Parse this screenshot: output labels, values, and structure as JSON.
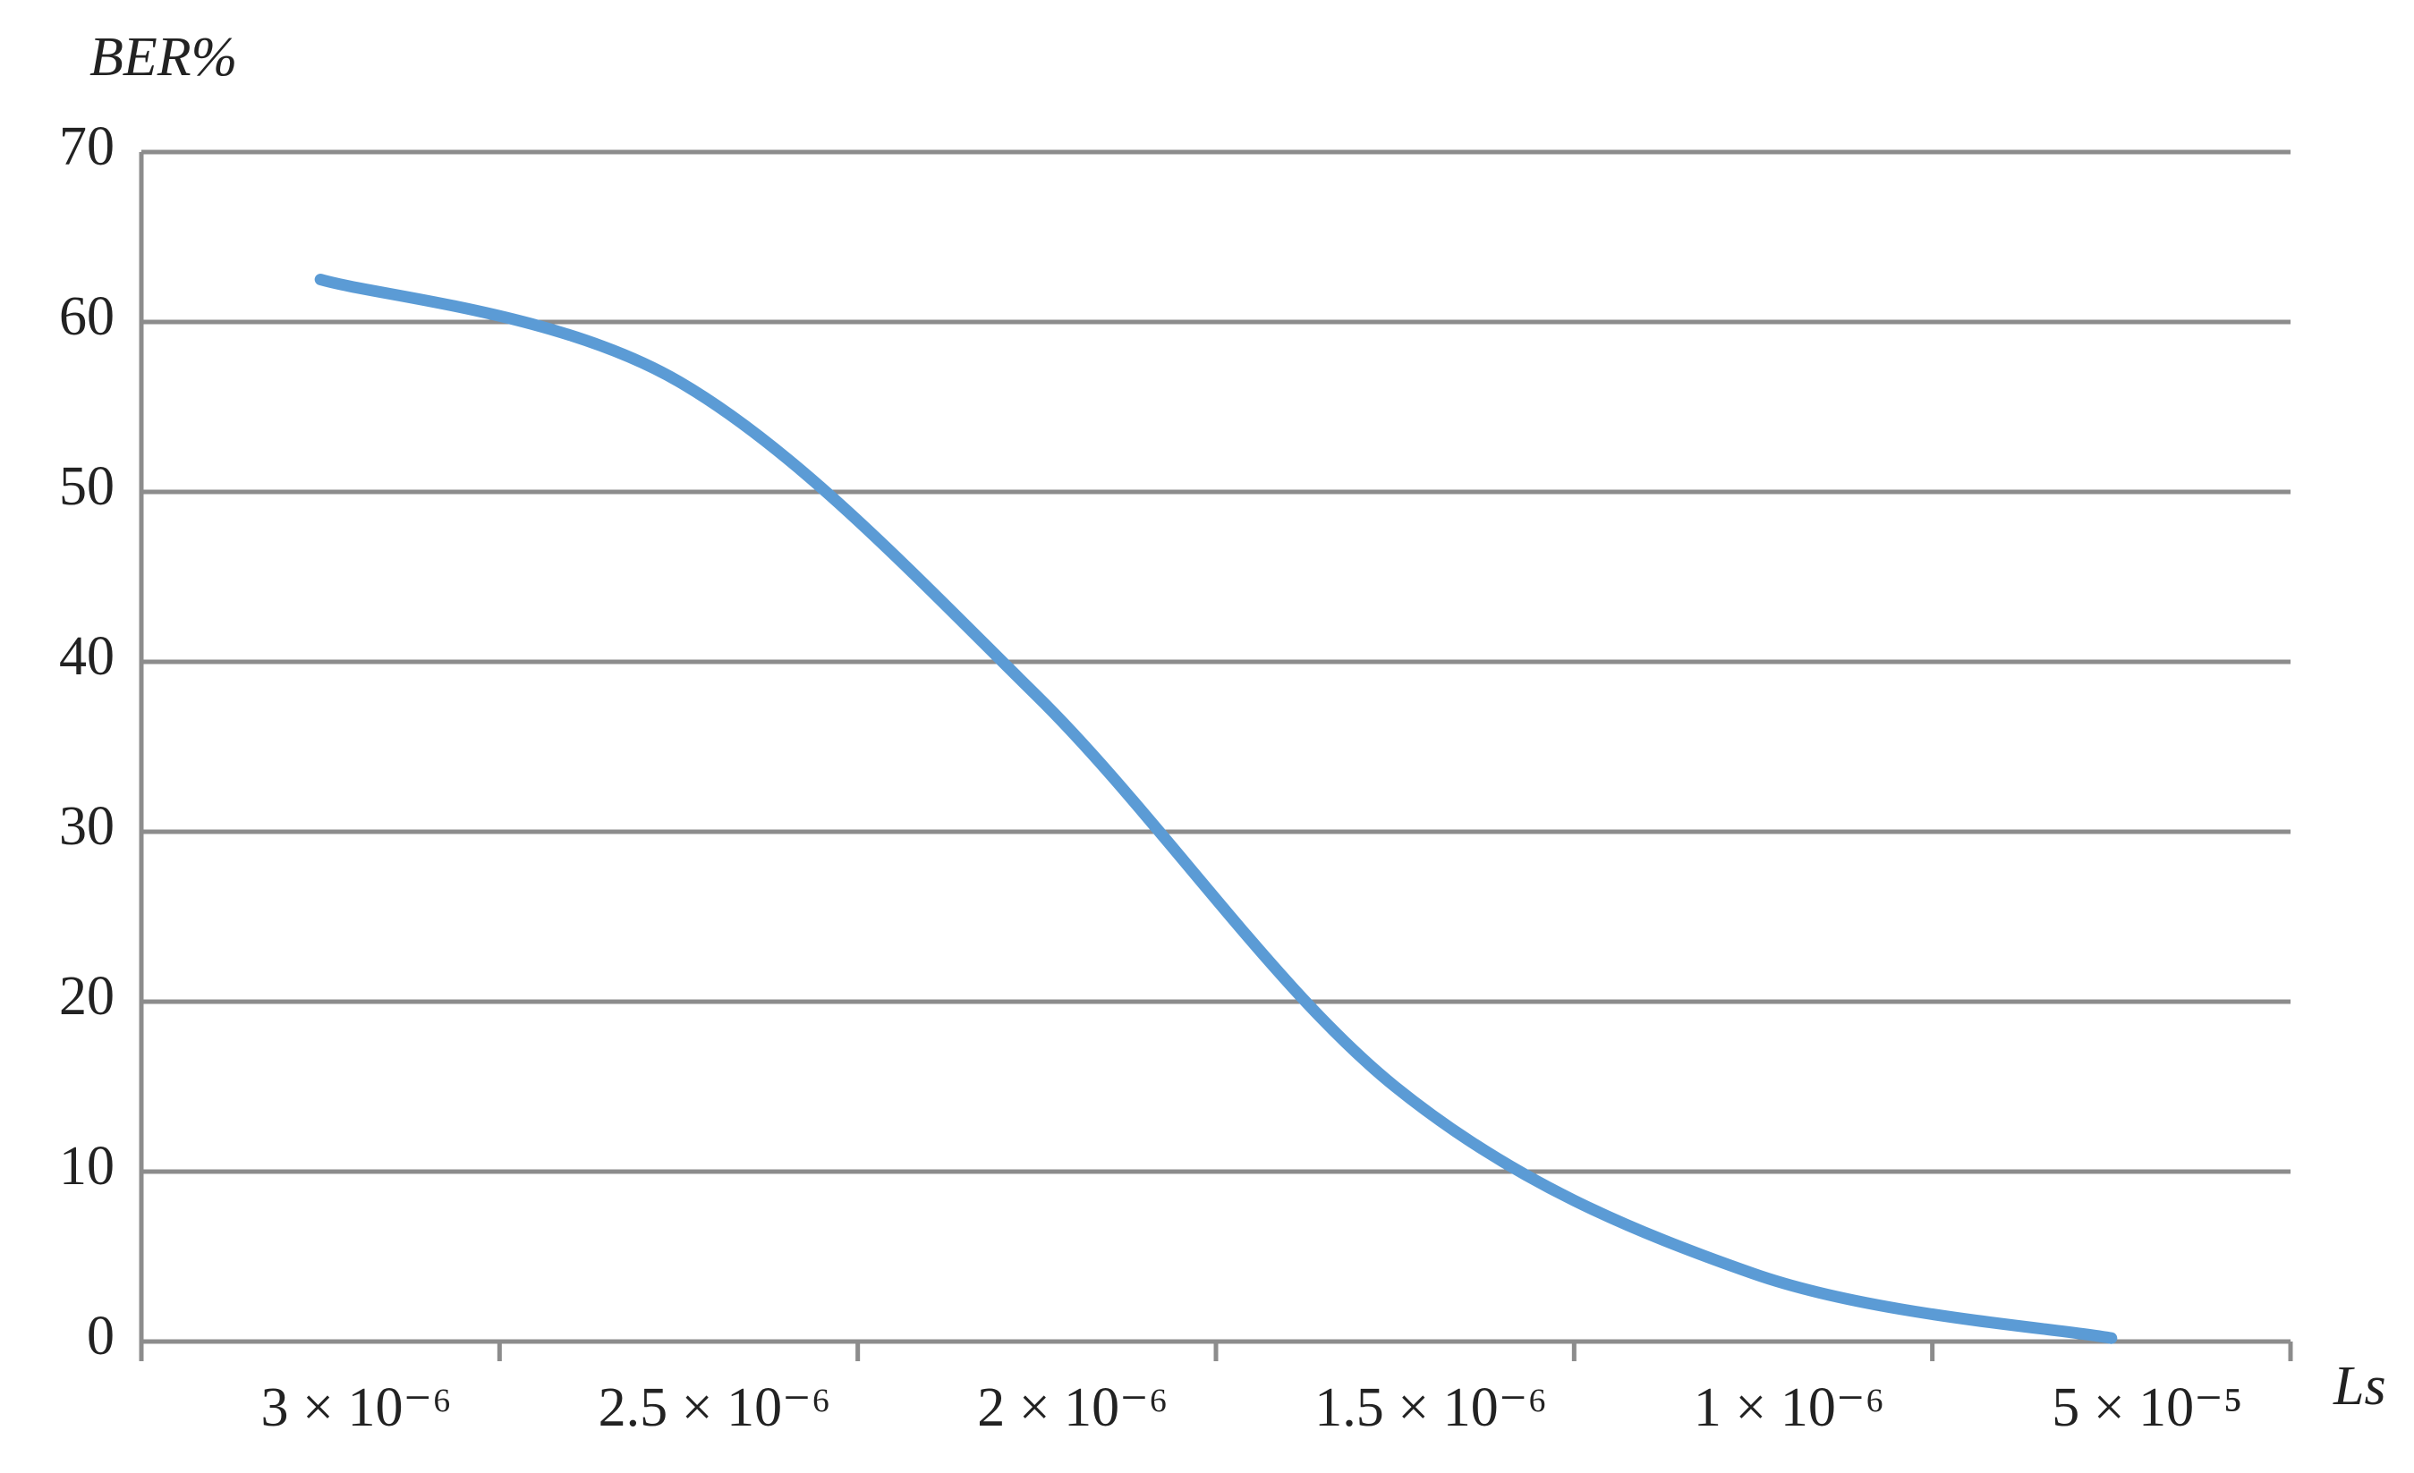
{
  "chart_data": {
    "type": "line",
    "y_label": "BER%",
    "x_label": "Ls",
    "categories": [
      "3 × 10⁻⁶",
      "2.5 × 10⁻⁶",
      "2 × 10⁻⁶",
      "1.5 × 10⁻⁶",
      "1 × 10⁻⁶",
      "5 × 10⁻⁵"
    ],
    "values": [
      62.5,
      56.5,
      38,
      15,
      4,
      0.2
    ],
    "color": "#5b9bd5",
    "ylim": [
      0,
      70
    ],
    "yticks": [
      0,
      10,
      20,
      30,
      40,
      50,
      60,
      70
    ],
    "grid": true
  }
}
